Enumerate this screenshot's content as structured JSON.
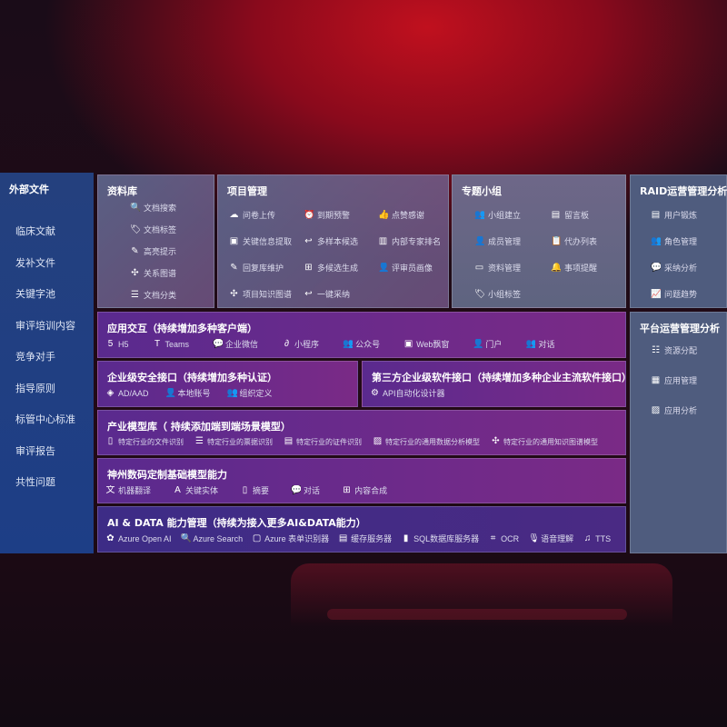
{
  "sidebar": {
    "title": "外部文件",
    "items": [
      "临床文献",
      "发补文件",
      "关键字池",
      "审评培训内容",
      "竞争对手",
      "指导原则",
      "标管中心标准",
      "审评报告",
      "共性问题"
    ]
  },
  "library": {
    "title": "资料库",
    "items": [
      {
        "label": "文档搜索",
        "icon": "document-search"
      },
      {
        "label": "文档标签",
        "icon": "tag"
      },
      {
        "label": "高亮提示",
        "icon": "pen"
      },
      {
        "label": "关系图谱",
        "icon": "graph"
      },
      {
        "label": "文档分类",
        "icon": "document-list"
      }
    ]
  },
  "project": {
    "title": "项目管理",
    "items": [
      {
        "label": "问卷上传",
        "icon": "cloud-upload"
      },
      {
        "label": "到期预警",
        "icon": "alarm"
      },
      {
        "label": "点赞感谢",
        "icon": "thumbs-up"
      },
      {
        "label": "关键信息提取",
        "icon": "window"
      },
      {
        "label": "多样本候选",
        "icon": "reply"
      },
      {
        "label": "内部专家排名",
        "icon": "podium"
      },
      {
        "label": "回复库维护",
        "icon": "edit"
      },
      {
        "label": "多候选生成",
        "icon": "puzzle"
      },
      {
        "label": "评审员画像",
        "icon": "user"
      },
      {
        "label": "项目知识图谱",
        "icon": "graph"
      },
      {
        "label": "一键采纳",
        "icon": "reply"
      }
    ]
  },
  "group": {
    "title": "专题小组",
    "items": [
      {
        "label": "小组建立",
        "icon": "users"
      },
      {
        "label": "留言板",
        "icon": "bbs"
      },
      {
        "label": "成员管理",
        "icon": "user-add"
      },
      {
        "label": "代办列表",
        "icon": "clipboard"
      },
      {
        "label": "资料管理",
        "icon": "folder"
      },
      {
        "label": "事项提醒",
        "icon": "bell"
      },
      {
        "label": "小组标签",
        "icon": "tag"
      }
    ]
  },
  "raid": {
    "title": "RAID运营管理分析",
    "items": [
      {
        "label": "用户锻炼",
        "icon": "id-card"
      },
      {
        "label": "角色管理",
        "icon": "users"
      },
      {
        "label": "采纳分析",
        "icon": "qa-chat"
      },
      {
        "label": "问题趋势",
        "icon": "trend"
      }
    ]
  },
  "platform": {
    "title": "平台运营管理分析",
    "items": [
      {
        "label": "资源分配",
        "icon": "checklist"
      },
      {
        "label": "应用管理",
        "icon": "apps"
      },
      {
        "label": "应用分析",
        "icon": "analytics"
      }
    ]
  },
  "interaction": {
    "title": "应用交互（持续增加多种客户端）",
    "items": [
      {
        "label": "H5",
        "icon": "html5"
      },
      {
        "label": "Teams",
        "icon": "teams"
      },
      {
        "label": "企业微信",
        "icon": "wechat-work"
      },
      {
        "label": "小程序",
        "icon": "mini-program"
      },
      {
        "label": "公众号",
        "icon": "users"
      },
      {
        "label": "Web飘窗",
        "icon": "window"
      },
      {
        "label": "门户",
        "icon": "portal-user"
      },
      {
        "label": "对话",
        "icon": "chat-users"
      }
    ]
  },
  "security": {
    "title": "企业级安全接口（持续增加多种认证）",
    "items": [
      {
        "label": "AD/AAD",
        "icon": "diamond"
      },
      {
        "label": "本地账号",
        "icon": "user-lock"
      },
      {
        "label": "组织定义",
        "icon": "org"
      }
    ]
  },
  "thirdparty": {
    "title": "第三方企业级软件接口（持续增加多种企业主流软件接口）",
    "items": [
      {
        "label": "API自动化设计器",
        "icon": "gear"
      }
    ]
  },
  "industry": {
    "title": "产业模型库（ 持续添加端到端场景模型）",
    "items": [
      {
        "label": "特定行业的文件识别",
        "icon": "file"
      },
      {
        "label": "特定行业的票据识别",
        "icon": "receipt"
      },
      {
        "label": "特定行业的证件识别",
        "icon": "id-card"
      },
      {
        "label": "特定行业的通用数据分析模型",
        "icon": "chart"
      },
      {
        "label": "特定行业的通用知识图谱模型",
        "icon": "graph"
      }
    ]
  },
  "base": {
    "title": "神州数码定制基础模型能力",
    "items": [
      {
        "label": "机器翻译",
        "icon": "translate"
      },
      {
        "label": "关键实体",
        "icon": "entity"
      },
      {
        "label": "摘要",
        "icon": "document"
      },
      {
        "label": "对话",
        "icon": "chat"
      },
      {
        "label": "内容合成",
        "icon": "puzzle"
      }
    ]
  },
  "aidata": {
    "title": "AI & DATA 能力管理（持续为接入更多AI&DATA能力）",
    "items": [
      {
        "label": "Azure Open AI",
        "icon": "openai"
      },
      {
        "label": "Azure Search",
        "icon": "search"
      },
      {
        "label": "Azure 表单识别器",
        "icon": "form"
      },
      {
        "label": "缓存服务器",
        "icon": "cache"
      },
      {
        "label": "SQL数据库服务器",
        "icon": "database"
      },
      {
        "label": "OCR",
        "icon": "ocr"
      },
      {
        "label": "语音理解",
        "icon": "mic"
      },
      {
        "label": "TTS",
        "icon": "tts"
      }
    ]
  }
}
